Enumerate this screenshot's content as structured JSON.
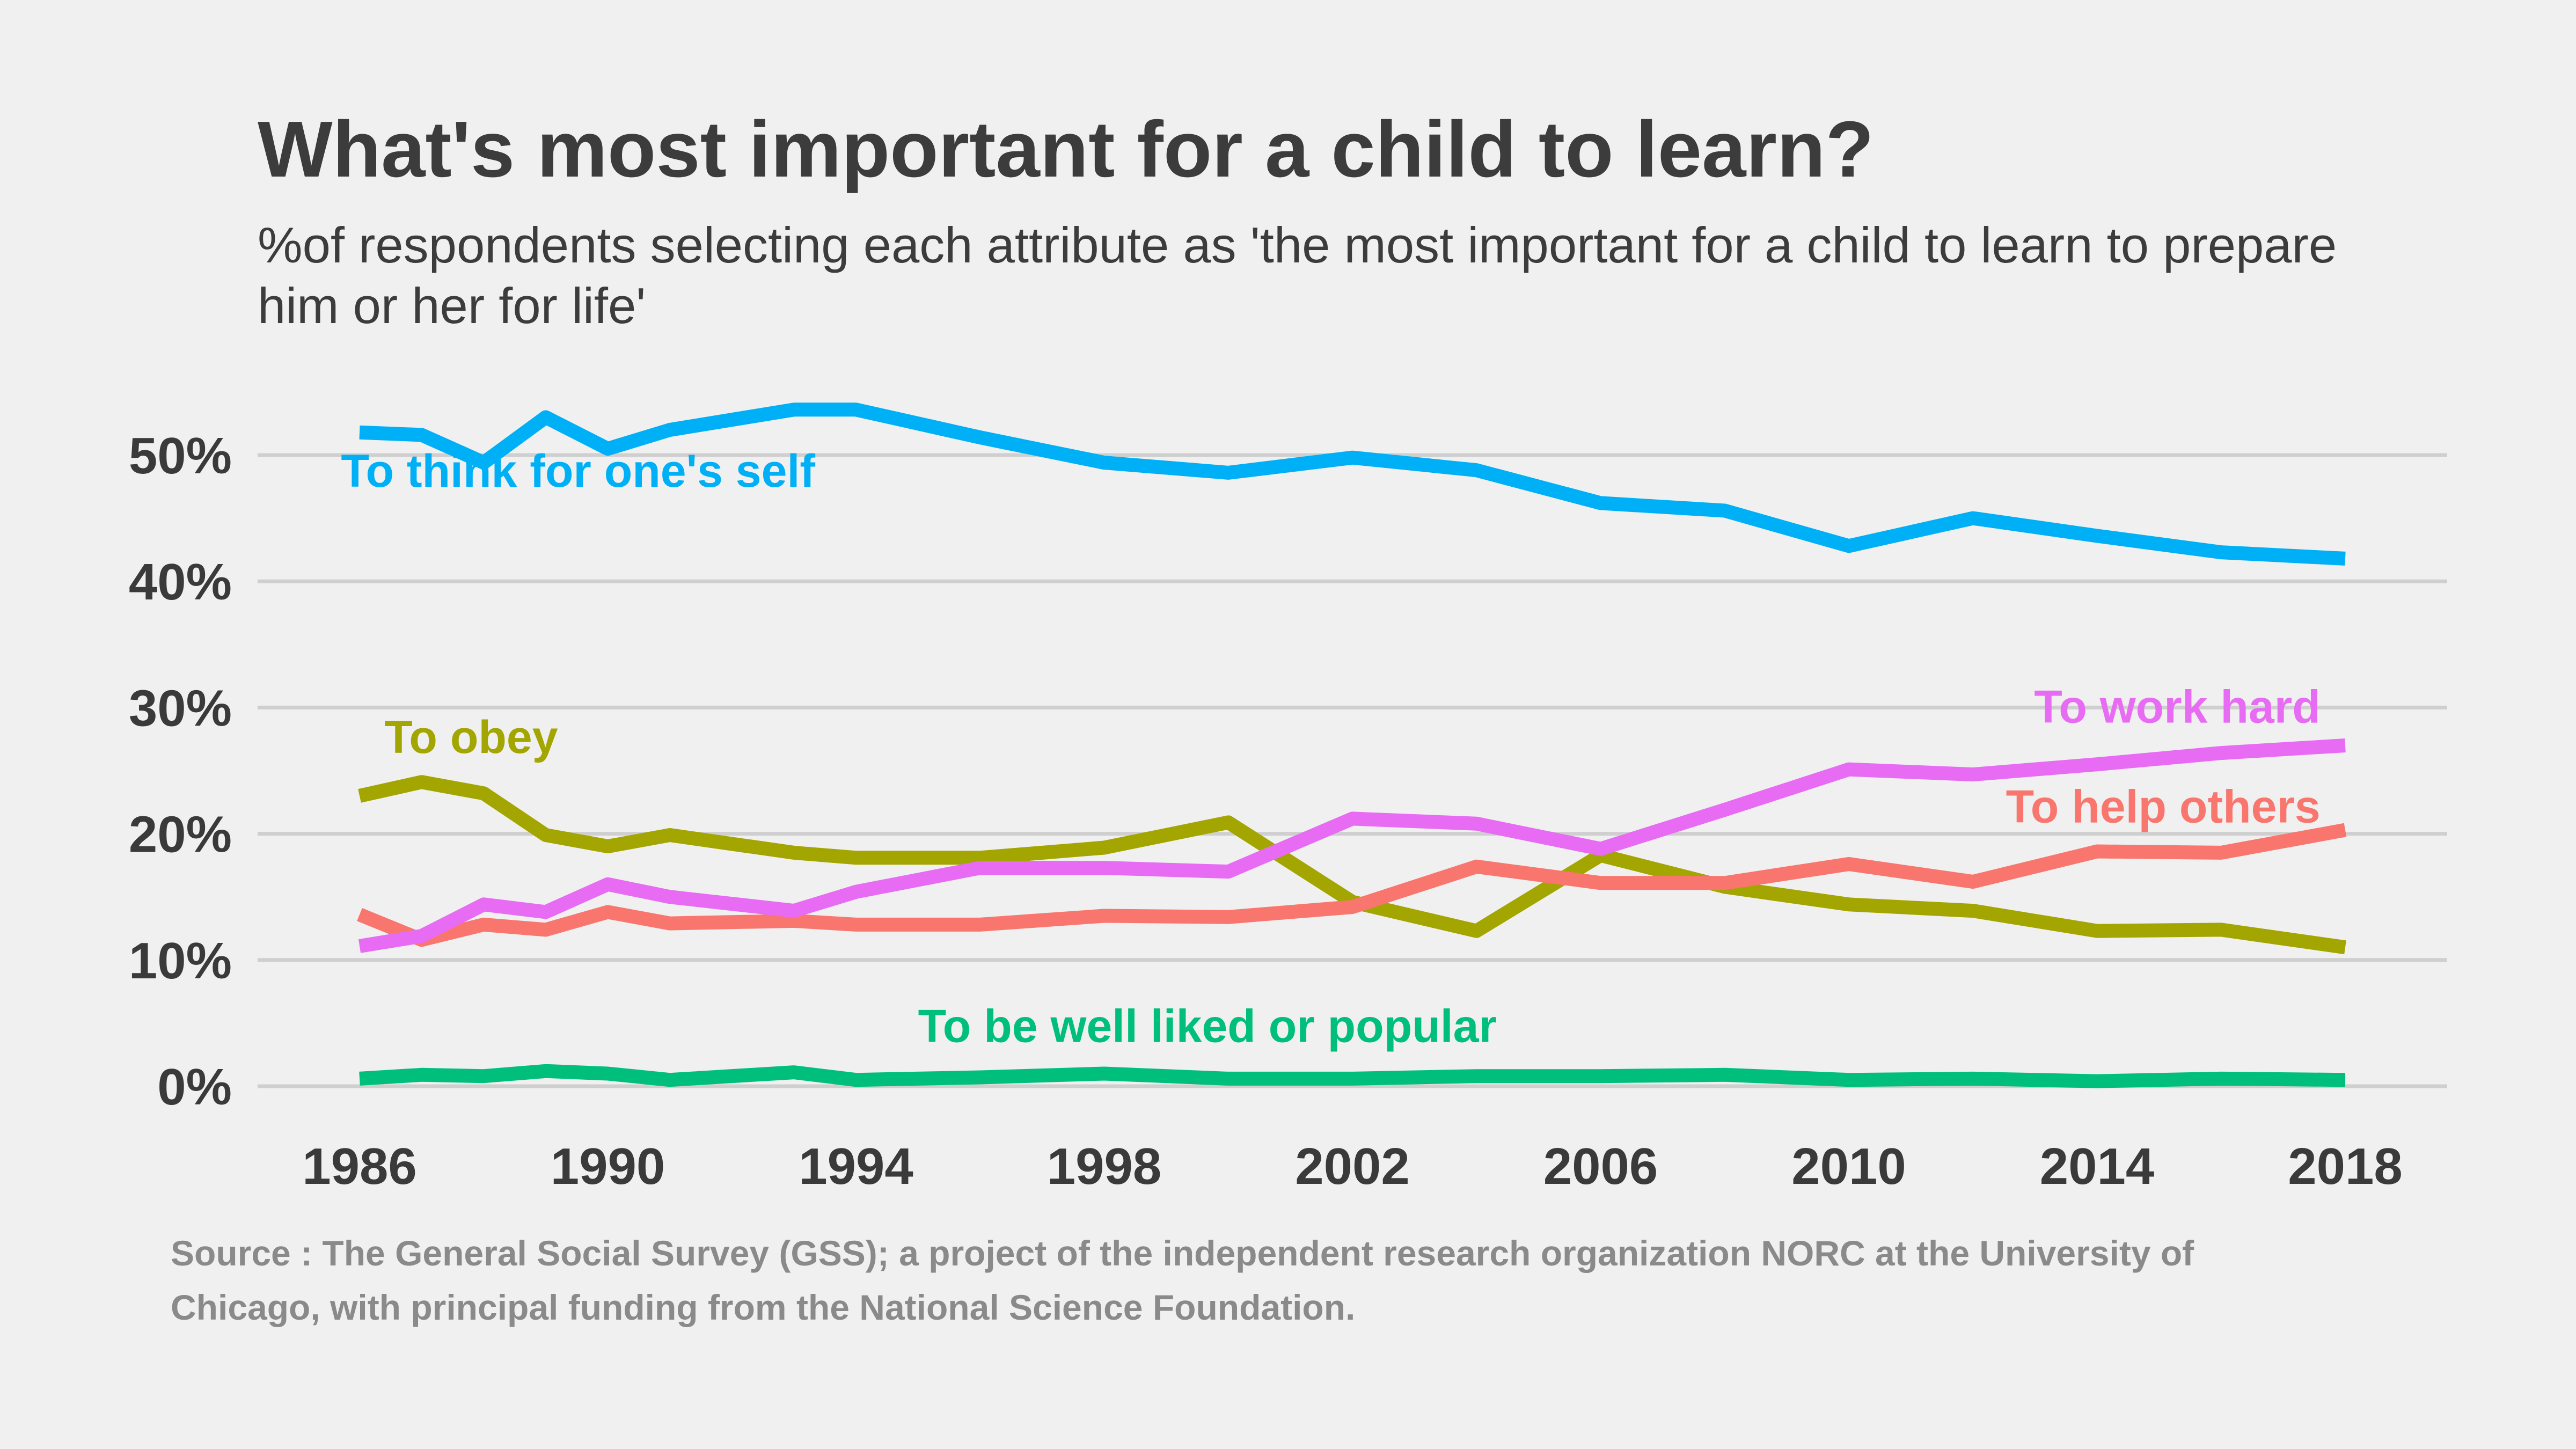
{
  "title": "What's most important for a child to learn?",
  "subtitle": "%of respondents selecting each attribute as 'the most important for a child to learn to prepare him or her for life'",
  "source": "Source : The General Social Survey (GSS); a project of the independent research organization NORC at the University of Chicago, with principal funding from the National Science Foundation.",
  "chart_data": {
    "type": "line",
    "title": "What's most important for a child to learn?",
    "subtitle": "%of respondents selecting each attribute as 'the most important for a child to learn to prepare him or her for life'",
    "xlabel": "",
    "ylabel": "",
    "xlim": [
      1986,
      2018
    ],
    "ylim": [
      0,
      55
    ],
    "x_ticks": [
      1986,
      1990,
      1994,
      1998,
      2002,
      2006,
      2010,
      2014,
      2018
    ],
    "y_ticks": [
      0,
      10,
      20,
      30,
      40,
      50
    ],
    "y_tick_labels": [
      "0%",
      "10%",
      "20%",
      "30%",
      "40%",
      "50%"
    ],
    "grid": "horizontal",
    "legend": "none (direct labels)",
    "series": [
      {
        "name": "To think for one's self",
        "color": "#00b0f6",
        "x": [
          1986,
          1987,
          1988,
          1989,
          1990,
          1991,
          1993,
          1994,
          1996,
          1998,
          2000,
          2002,
          2004,
          2006,
          2008,
          2010,
          2012,
          2014,
          2016,
          2018
        ],
        "values": [
          51.8,
          51.6,
          49.4,
          53.0,
          50.5,
          52.0,
          53.6,
          53.6,
          51.4,
          49.4,
          48.6,
          49.8,
          48.8,
          46.2,
          45.6,
          42.8,
          45.0,
          43.6,
          42.3,
          41.8
        ]
      },
      {
        "name": "To work hard",
        "color": "#e76bf3",
        "x": [
          1986,
          1987,
          1988,
          1989,
          1990,
          1991,
          1993,
          1994,
          1996,
          1998,
          2000,
          2002,
          2004,
          2006,
          2008,
          2010,
          2012,
          2014,
          2016,
          2018
        ],
        "values": [
          11.1,
          11.9,
          14.4,
          13.8,
          16.0,
          15.0,
          13.9,
          15.4,
          17.3,
          17.3,
          17.0,
          21.2,
          20.8,
          18.8,
          21.9,
          25.1,
          24.7,
          25.5,
          26.4,
          27.0
        ]
      },
      {
        "name": "To help others",
        "color": "#f8766d",
        "x": [
          1986,
          1987,
          1988,
          1989,
          1990,
          1991,
          1993,
          1994,
          1996,
          1998,
          2000,
          2002,
          2004,
          2006,
          2008,
          2010,
          2012,
          2014,
          2016,
          2018
        ],
        "values": [
          13.6,
          11.6,
          12.8,
          12.4,
          13.8,
          12.9,
          13.1,
          12.8,
          12.8,
          13.5,
          13.4,
          14.2,
          17.4,
          16.1,
          16.1,
          17.6,
          16.2,
          18.6,
          18.5,
          20.3
        ]
      },
      {
        "name": "To obey",
        "color": "#a3a500",
        "x": [
          1986,
          1987,
          1988,
          1989,
          1990,
          1991,
          1993,
          1994,
          1996,
          1998,
          2000,
          2002,
          2004,
          2006,
          2008,
          2010,
          2012,
          2014,
          2016,
          2018
        ],
        "values": [
          23.0,
          24.1,
          23.2,
          19.9,
          19.0,
          19.9,
          18.5,
          18.1,
          18.1,
          18.9,
          20.9,
          14.6,
          12.3,
          18.3,
          15.8,
          14.4,
          13.9,
          12.3,
          12.4,
          11.0
        ]
      },
      {
        "name": "To be well liked or popular",
        "color": "#00bf7d",
        "x": [
          1986,
          1987,
          1988,
          1989,
          1990,
          1991,
          1993,
          1994,
          1996,
          1998,
          2000,
          2002,
          2004,
          2006,
          2008,
          2010,
          2012,
          2014,
          2016,
          2018
        ],
        "values": [
          0.6,
          0.9,
          0.8,
          1.2,
          1.0,
          0.5,
          1.1,
          0.5,
          0.7,
          1.0,
          0.6,
          0.6,
          0.8,
          0.8,
          0.9,
          0.5,
          0.6,
          0.4,
          0.6,
          0.5
        ]
      }
    ]
  }
}
